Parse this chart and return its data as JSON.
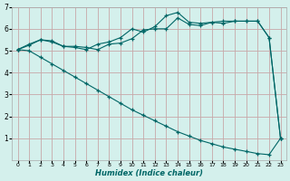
{
  "bg_color": "#d4f0ec",
  "grid_color_h": "#c8a8a8",
  "grid_color_v": "#c8a8a8",
  "line_color": "#006666",
  "xlabel": "Humidex (Indice chaleur)",
  "xlim": [
    -0.5,
    23.5
  ],
  "ylim": [
    0,
    7
  ],
  "xticks": [
    0,
    1,
    2,
    3,
    4,
    5,
    6,
    7,
    8,
    9,
    10,
    11,
    12,
    13,
    14,
    15,
    16,
    17,
    18,
    19,
    20,
    21,
    22,
    23
  ],
  "yticks": [
    1,
    2,
    3,
    4,
    5,
    6,
    7
  ],
  "line1_x": [
    0,
    1,
    2,
    3,
    4,
    5,
    6,
    7,
    8,
    9,
    10,
    11,
    12,
    13,
    14,
    15,
    16,
    17,
    18,
    19,
    20,
    21,
    22,
    23
  ],
  "line1_y": [
    5.05,
    5.25,
    5.5,
    5.4,
    5.2,
    5.15,
    5.05,
    5.3,
    5.4,
    5.6,
    6.0,
    5.85,
    6.1,
    6.6,
    6.75,
    6.3,
    6.25,
    6.3,
    6.35,
    6.35,
    6.35,
    6.35,
    5.6,
    1.0
  ],
  "line2_x": [
    0,
    1,
    2,
    3,
    4,
    5,
    6,
    7,
    8,
    9,
    10,
    11,
    12,
    13,
    14,
    15,
    16,
    17,
    18,
    19,
    20,
    21,
    22,
    23
  ],
  "line2_y": [
    5.05,
    5.3,
    5.5,
    5.45,
    5.2,
    5.2,
    5.15,
    5.05,
    5.3,
    5.35,
    5.55,
    5.95,
    6.0,
    6.0,
    6.5,
    6.2,
    6.15,
    6.3,
    6.25,
    6.35,
    6.35,
    6.35,
    5.6,
    1.0
  ],
  "line3_x": [
    0,
    1,
    2,
    3,
    4,
    5,
    6,
    7,
    8,
    9,
    10,
    11,
    12,
    13,
    14,
    15,
    16,
    17,
    18,
    19,
    20,
    21,
    22,
    23
  ],
  "line3_y": [
    5.05,
    5.0,
    4.7,
    4.4,
    4.1,
    3.8,
    3.5,
    3.2,
    2.9,
    2.6,
    2.3,
    2.05,
    1.8,
    1.55,
    1.3,
    1.1,
    0.9,
    0.75,
    0.6,
    0.5,
    0.4,
    0.3,
    0.25,
    1.0
  ]
}
